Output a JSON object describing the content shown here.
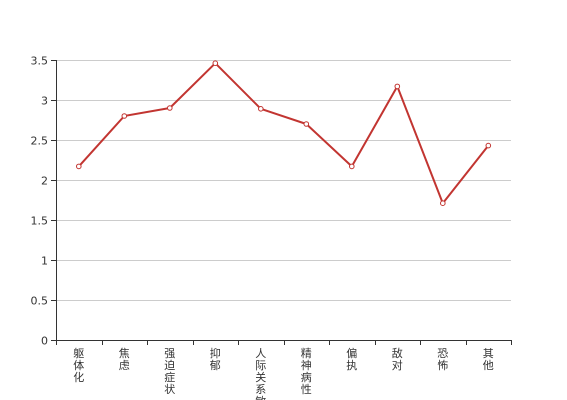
{
  "chart_data": {
    "type": "line",
    "title": "",
    "xlabel": "",
    "ylabel": "",
    "categories": [
      "躯体化",
      "焦虑",
      "强迫症状",
      "抑郁",
      "人际关系敏感",
      "精神病性",
      "偏执",
      "敌对",
      "恐怖",
      "其他"
    ],
    "series": [
      {
        "values": [
          2.17,
          2.8,
          2.9,
          3.46,
          2.89,
          2.7,
          2.17,
          3.17,
          1.71,
          2.43
        ]
      }
    ],
    "ylim": [
      0,
      3.5
    ],
    "yticks": [
      "0",
      "0.5",
      "1",
      "1.5",
      "2",
      "2.5",
      "3",
      "3.5"
    ],
    "grid": true,
    "legend": "none",
    "colors": {
      "line": "#c23531",
      "grid": "#cccccc",
      "axis": "#333333",
      "text": "#333333"
    }
  }
}
